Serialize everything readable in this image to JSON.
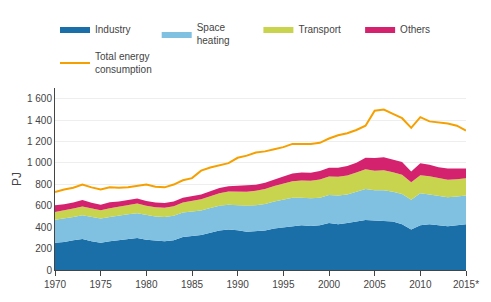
{
  "chart_data": {
    "type": "area",
    "stacked": true,
    "ylabel": "PJ",
    "x": [
      1970,
      1971,
      1972,
      1973,
      1974,
      1975,
      1976,
      1977,
      1978,
      1979,
      1980,
      1981,
      1982,
      1983,
      1984,
      1985,
      1986,
      1987,
      1988,
      1989,
      1990,
      1991,
      1992,
      1993,
      1994,
      1995,
      1996,
      1997,
      1998,
      1999,
      2000,
      2001,
      2002,
      2003,
      2004,
      2005,
      2006,
      2007,
      2008,
      2009,
      2010,
      2011,
      2012,
      2013,
      2014,
      2015
    ],
    "series": [
      {
        "name": "Industry",
        "type": "area",
        "color": "#1a6fa8",
        "values": [
          255,
          262,
          278,
          290,
          268,
          255,
          268,
          278,
          288,
          298,
          282,
          272,
          268,
          278,
          308,
          318,
          328,
          348,
          368,
          378,
          372,
          358,
          362,
          368,
          388,
          398,
          408,
          418,
          412,
          418,
          438,
          428,
          438,
          452,
          468,
          462,
          458,
          452,
          428,
          378,
          418,
          428,
          418,
          408,
          418,
          428
        ]
      },
      {
        "name": "Space\nheating",
        "type": "area",
        "color": "#80c0e0",
        "values": [
          215,
          218,
          218,
          222,
          225,
          225,
          228,
          232,
          232,
          232,
          230,
          228,
          228,
          228,
          228,
          228,
          228,
          232,
          232,
          232,
          232,
          242,
          242,
          248,
          252,
          258,
          268,
          258,
          258,
          258,
          262,
          268,
          268,
          278,
          288,
          282,
          288,
          278,
          282,
          278,
          298,
          278,
          272,
          272,
          268,
          268
        ]
      },
      {
        "name": "Transport",
        "type": "area",
        "color": "#c8d44e",
        "values": [
          72,
          75,
          78,
          81,
          80,
          77,
          80,
          82,
          87,
          90,
          87,
          85,
          85,
          89,
          95,
          99,
          104,
          110,
          117,
          124,
          130,
          132,
          137,
          140,
          144,
          150,
          154,
          160,
          164,
          170,
          174,
          174,
          177,
          180,
          184,
          184,
          185,
          184,
          180,
          164,
          170,
          170,
          167,
          164,
          162,
          160
        ]
      },
      {
        "name": "Others",
        "type": "area",
        "color": "#d4226e",
        "values": [
          62,
          58,
          56,
          62,
          55,
          52,
          57,
          48,
          48,
          48,
          46,
          46,
          44,
          44,
          44,
          44,
          46,
          46,
          48,
          48,
          52,
          60,
          56,
          58,
          62,
          68,
          72,
          75,
          75,
          78,
          82,
          85,
          88,
          92,
          108,
          118,
          122,
          120,
          118,
          100,
          112,
          107,
          102,
          105,
          100,
          92
        ]
      },
      {
        "name": "Total energy\nconsumption",
        "type": "line",
        "color": "#f5a000",
        "values": [
          728,
          752,
          768,
          798,
          772,
          752,
          772,
          768,
          772,
          788,
          798,
          778,
          772,
          798,
          838,
          858,
          928,
          958,
          978,
          998,
          1048,
          1068,
          1098,
          1108,
          1128,
          1148,
          1178,
          1178,
          1178,
          1188,
          1228,
          1258,
          1278,
          1308,
          1348,
          1488,
          1498,
          1458,
          1418,
          1328,
          1428,
          1388,
          1378,
          1368,
          1348,
          1302
        ]
      }
    ],
    "xlim": [
      1970,
      2015
    ],
    "xticks": [
      1970,
      1975,
      1980,
      1985,
      1990,
      1995,
      2000,
      2005,
      2010,
      {
        "value": 2015,
        "label": "2015*"
      }
    ],
    "ylim": [
      0,
      1700
    ],
    "yticks": [
      0,
      200,
      400,
      600,
      800,
      {
        "value": 1000,
        "label": "1 000"
      },
      {
        "value": 1200,
        "label": "1 200"
      },
      {
        "value": 1400,
        "label": "1 400"
      },
      {
        "value": 1600,
        "label": "1 600"
      }
    ],
    "grid": true,
    "legend": "upper left"
  }
}
